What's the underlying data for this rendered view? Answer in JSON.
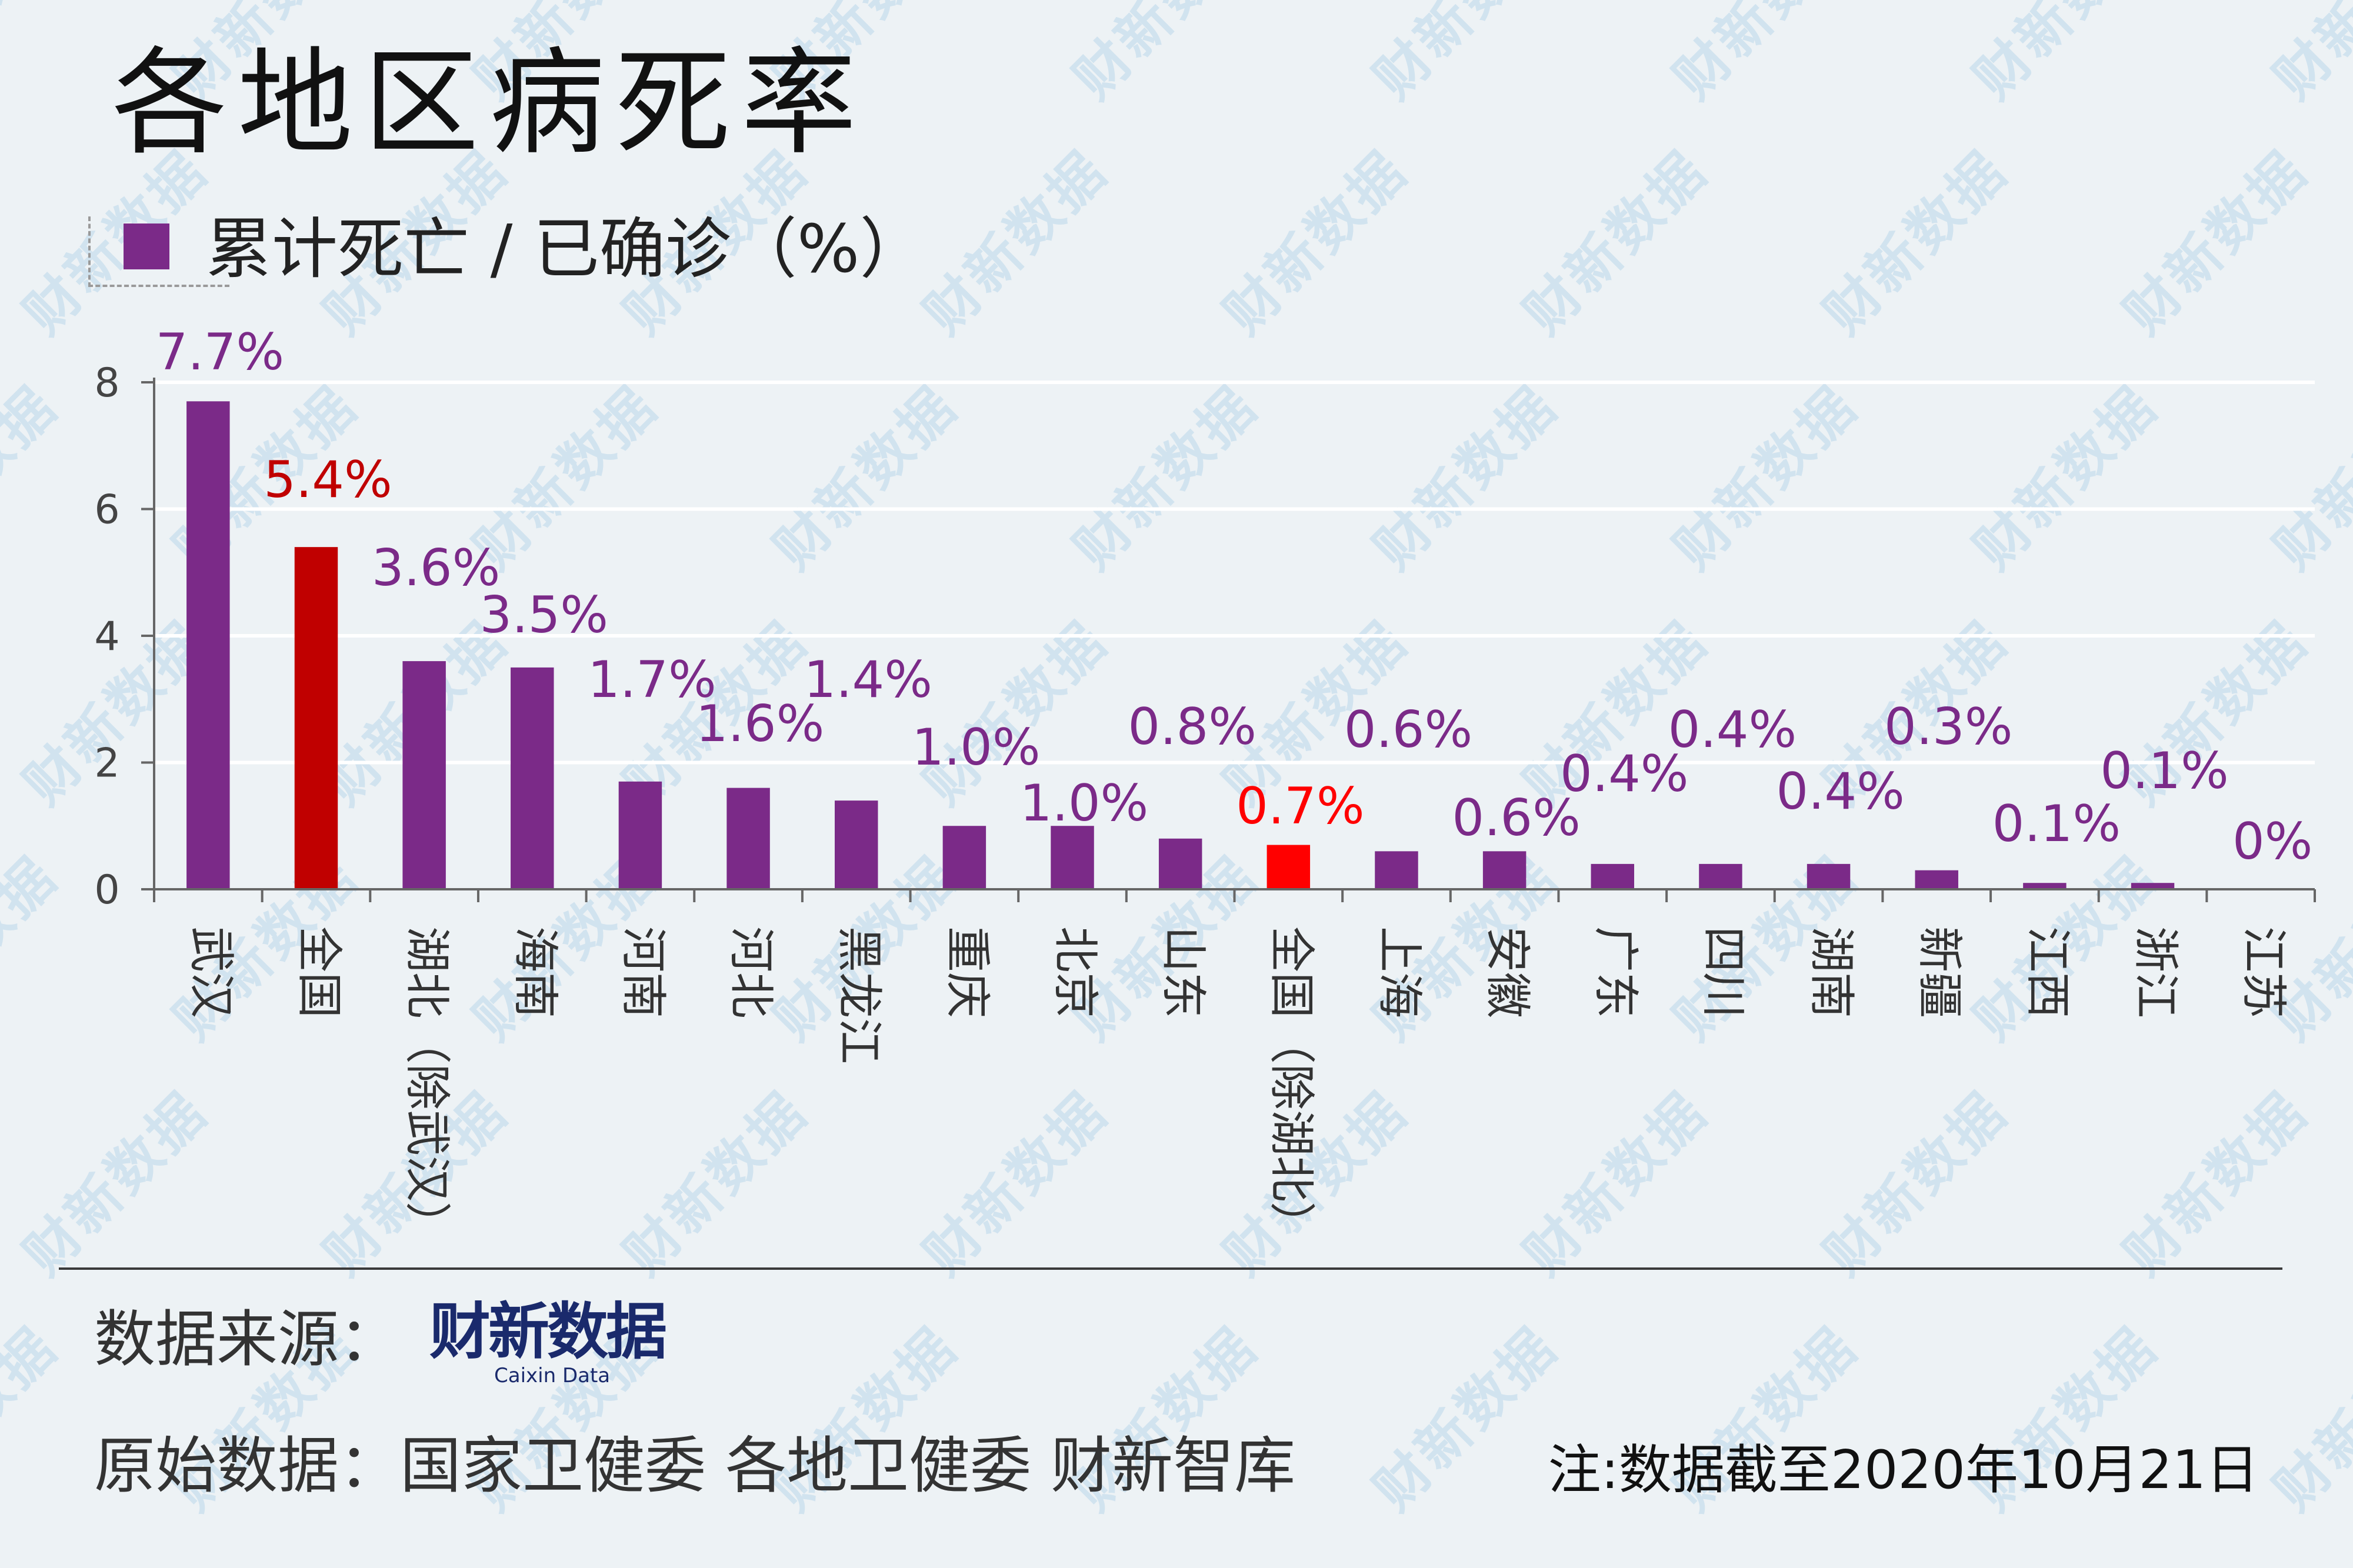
{
  "title": "各地区病死率",
  "legend": {
    "label": "累计死亡 / 已确诊（%）",
    "color": "#7b2a88"
  },
  "watermark_text": "财新数据",
  "chart_data": {
    "type": "bar",
    "series_name": "累计死亡 / 已确诊（%）",
    "categories": [
      "武汉",
      "全国",
      "湖北（除武汉）",
      "海南",
      "河南",
      "河北",
      "黑龙江",
      "重庆",
      "北京",
      "山东",
      "全国（除湖北）",
      "上海",
      "安徽",
      "广东",
      "四川",
      "湖南",
      "新疆",
      "江西",
      "浙江",
      "江苏"
    ],
    "values": [
      7.7,
      5.4,
      3.6,
      3.5,
      1.7,
      1.6,
      1.4,
      1.0,
      1.0,
      0.8,
      0.7,
      0.6,
      0.6,
      0.4,
      0.4,
      0.4,
      0.3,
      0.1,
      0.1,
      0
    ],
    "labels": [
      "7.7%",
      "5.4%",
      "3.6%",
      "3.5%",
      "1.7%",
      "1.6%",
      "1.4%",
      "1.0%",
      "1.0%",
      "0.8%",
      "0.7%",
      "0.6%",
      "0.6%",
      "0.4%",
      "0.4%",
      "0.4%",
      "0.3%",
      "0.1%",
      "0.1%",
      "0%"
    ],
    "bar_colors": [
      "#7b2a88",
      "#c00000",
      "#7b2a88",
      "#7b2a88",
      "#7b2a88",
      "#7b2a88",
      "#7b2a88",
      "#7b2a88",
      "#7b2a88",
      "#7b2a88",
      "#ff0000",
      "#7b2a88",
      "#7b2a88",
      "#7b2a88",
      "#7b2a88",
      "#7b2a88",
      "#7b2a88",
      "#7b2a88",
      "#7b2a88",
      "#7b2a88"
    ],
    "label_colors": [
      "#7b2a88",
      "#c00000",
      "#7b2a88",
      "#7b2a88",
      "#7b2a88",
      "#7b2a88",
      "#7b2a88",
      "#7b2a88",
      "#7b2a88",
      "#7b2a88",
      "#ff0000",
      "#7b2a88",
      "#7b2a88",
      "#7b2a88",
      "#7b2a88",
      "#7b2a88",
      "#7b2a88",
      "#7b2a88",
      "#7b2a88",
      "#7b2a88"
    ],
    "yticks": [
      0,
      2,
      4,
      6,
      8
    ],
    "ylim": [
      0,
      8
    ],
    "grid": true
  },
  "footer": {
    "source_label": "数据来源：",
    "logo_text": "财新数据",
    "logo_sub": "Caixin Data",
    "raw_label": "原始数据：国家卫健委 各地卫健委 财新智库",
    "note": "注:数据截至2020年10月21日"
  }
}
